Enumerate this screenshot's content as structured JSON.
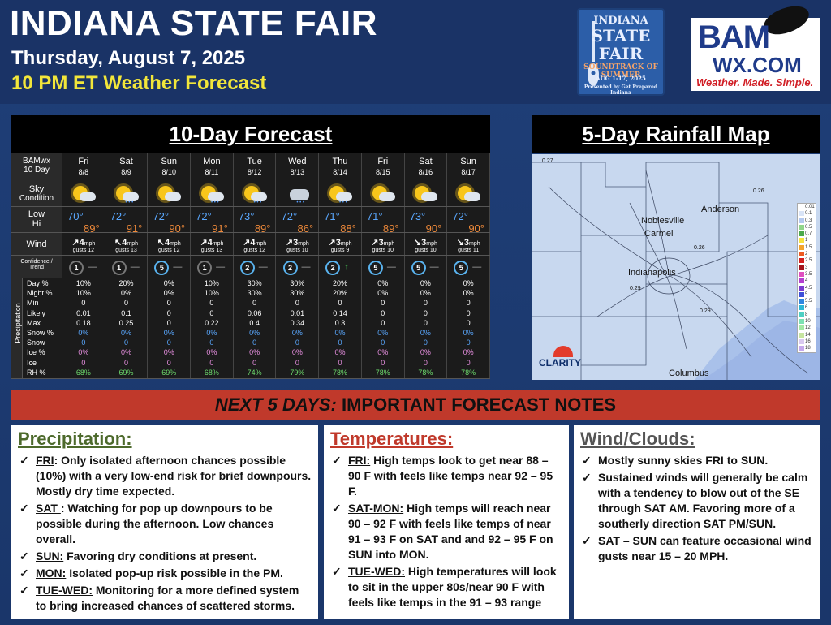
{
  "header": {
    "title": "INDIANA STATE FAIR",
    "date": "Thursday, August 7, 2025",
    "subtitle": "10 PM ET Weather Forecast"
  },
  "fair_logo": {
    "line1": "INDIANA",
    "line2": "STATE",
    "line3": "FAIR",
    "line4": "SOUNDTRACK OF SUMMER",
    "line5": "AUG 1-17, 2025",
    "line6": "Presented by Get Prepared Indiana"
  },
  "bam_logo": {
    "top": "BAM",
    "wx": "WX.COM",
    "tagline": "Weather. Made. Simple."
  },
  "forecast": {
    "title": "10-Day Forecast",
    "corner_label_1": "BAMwx",
    "corner_label_2": "10 Day",
    "labels": {
      "sky": "Sky",
      "sky_sub": "Condition",
      "low": "Low",
      "hi": "Hi",
      "wind": "Wind",
      "confidence": "Confidence /",
      "trend": "Trend",
      "precipitation": "Precipitation",
      "mph": "mph",
      "gusts": "gusts"
    },
    "precip_labels": [
      "Day %",
      "Night %",
      "Min",
      "Likely",
      "Max",
      "Snow %",
      "Snow",
      "Ice %",
      "Ice",
      "RH %"
    ],
    "days": [
      {
        "name": "Fri",
        "date": "8/8",
        "icon": "sun-cloud-icon",
        "low": "70°",
        "hi": "89°",
        "wind_dir": "↗",
        "wind": "4",
        "gusts": "12",
        "confidence": "1",
        "trend": "—",
        "precip": [
          "10%",
          "10%",
          "0",
          "0.01",
          "0.18",
          "0%",
          "0",
          "0%",
          "0",
          "68%"
        ]
      },
      {
        "name": "Sat",
        "date": "8/9",
        "icon": "sun-cloud-rain-icon",
        "low": "72°",
        "hi": "91°",
        "wind_dir": "↖",
        "wind": "4",
        "gusts": "13",
        "confidence": "1",
        "trend": "—",
        "precip": [
          "20%",
          "0%",
          "0",
          "0.1",
          "0.25",
          "0%",
          "0",
          "0%",
          "0",
          "69%"
        ]
      },
      {
        "name": "Sun",
        "date": "8/10",
        "icon": "sun-cloud-icon",
        "low": "72°",
        "hi": "90°",
        "wind_dir": "↖",
        "wind": "4",
        "gusts": "12",
        "confidence": "5",
        "trend": "—",
        "precip": [
          "0%",
          "0%",
          "0",
          "0",
          "0",
          "0%",
          "0",
          "0%",
          "0",
          "69%"
        ]
      },
      {
        "name": "Mon",
        "date": "8/11",
        "icon": "sun-cloud-rain-icon",
        "low": "72°",
        "hi": "91°",
        "wind_dir": "↗",
        "wind": "4",
        "gusts": "13",
        "confidence": "1",
        "trend": "—",
        "precip": [
          "10%",
          "10%",
          "0",
          "0",
          "0.22",
          "0%",
          "0",
          "0%",
          "0",
          "68%"
        ]
      },
      {
        "name": "Tue",
        "date": "8/12",
        "icon": "sun-cloud-rain-icon",
        "low": "73°",
        "hi": "89°",
        "wind_dir": "↗",
        "wind": "4",
        "gusts": "12",
        "confidence": "2",
        "trend": "—",
        "precip": [
          "30%",
          "30%",
          "0",
          "0.06",
          "0.4",
          "0%",
          "0",
          "0%",
          "0",
          "74%"
        ]
      },
      {
        "name": "Wed",
        "date": "8/13",
        "icon": "cloud-rain-icon",
        "low": "72°",
        "hi": "86°",
        "wind_dir": "↗",
        "wind": "3",
        "gusts": "10",
        "confidence": "2",
        "trend": "—",
        "precip": [
          "30%",
          "30%",
          "0",
          "0.01",
          "0.34",
          "0%",
          "0",
          "0%",
          "0",
          "79%"
        ]
      },
      {
        "name": "Thu",
        "date": "8/14",
        "icon": "sun-cloud-rain-icon",
        "low": "71°",
        "hi": "88°",
        "wind_dir": "↗",
        "wind": "3",
        "gusts": "9",
        "confidence": "2",
        "trend": "↑",
        "precip": [
          "20%",
          "20%",
          "0",
          "0.14",
          "0.3",
          "0%",
          "0",
          "0%",
          "0",
          "78%"
        ]
      },
      {
        "name": "Fri",
        "date": "8/15",
        "icon": "sun-cloud-icon",
        "low": "71°",
        "hi": "89°",
        "wind_dir": "↗",
        "wind": "3",
        "gusts": "10",
        "confidence": "5",
        "trend": "—",
        "precip": [
          "0%",
          "0%",
          "0",
          "0",
          "0",
          "0%",
          "0",
          "0%",
          "0",
          "78%"
        ]
      },
      {
        "name": "Sat",
        "date": "8/16",
        "icon": "sun-cloud-icon",
        "low": "73°",
        "hi": "90°",
        "wind_dir": "↘",
        "wind": "3",
        "gusts": "10",
        "confidence": "5",
        "trend": "—",
        "precip": [
          "0%",
          "0%",
          "0",
          "0",
          "0",
          "0%",
          "0",
          "0%",
          "0",
          "78%"
        ]
      },
      {
        "name": "Sun",
        "date": "8/17",
        "icon": "sun-cloud-icon",
        "low": "72°",
        "hi": "90°",
        "wind_dir": "↘",
        "wind": "3",
        "gusts": "11",
        "confidence": "5",
        "trend": "—",
        "precip": [
          "0%",
          "0%",
          "0",
          "0",
          "0",
          "0%",
          "0",
          "0%",
          "0",
          "78%"
        ]
      }
    ]
  },
  "rain_map": {
    "title": "5-Day Rainfall Map",
    "cities": [
      "Anderson",
      "Noblesville",
      "Carmel",
      "Indianapolis",
      "Columbus"
    ],
    "values": [
      "0.27",
      "0.26",
      "0.26",
      "0.29",
      "0.29"
    ],
    "legend": [
      {
        "label": "0.01",
        "color": "#ffffff"
      },
      {
        "label": "0.1",
        "color": "#d9e4f7"
      },
      {
        "label": "0.3",
        "color": "#b4c9f0"
      },
      {
        "label": "0.5",
        "color": "#91d68a"
      },
      {
        "label": "0.7",
        "color": "#4caa4c"
      },
      {
        "label": "1",
        "color": "#f6e23c"
      },
      {
        "label": "1.5",
        "color": "#f4a32a"
      },
      {
        "label": "2",
        "color": "#ee5a21"
      },
      {
        "label": "2.5",
        "color": "#d41f1f"
      },
      {
        "label": "3",
        "color": "#a3121a"
      },
      {
        "label": "3.5",
        "color": "#e04fbf"
      },
      {
        "label": "4",
        "color": "#b53fd0"
      },
      {
        "label": "4.5",
        "color": "#7c3bcf"
      },
      {
        "label": "5",
        "color": "#3d4fd8"
      },
      {
        "label": "5.5",
        "color": "#2f86e0"
      },
      {
        "label": "6",
        "color": "#2bb8d6"
      },
      {
        "label": "8",
        "color": "#4fd0c4"
      },
      {
        "label": "10",
        "color": "#7ce1b3"
      },
      {
        "label": "12",
        "color": "#a2e8a4"
      },
      {
        "label": "14",
        "color": "#c7e5a0"
      },
      {
        "label": "16",
        "color": "#d9c9f0"
      },
      {
        "label": "18",
        "color": "#c5a8ec"
      }
    ],
    "clarity": "CLARITY"
  },
  "notes": {
    "bar_italic": "NEXT 5 DAYS:",
    "bar_rest": " IMPORTANT FORECAST NOTES",
    "precipitation": {
      "title": "Precipitation:",
      "items": [
        {
          "key": "FRI",
          "text": ": Only isolated afternoon chances possible (10%) with a very low-end risk for brief downpours. Mostly dry time expected."
        },
        {
          "key": "SAT ",
          "text": ": Watching for pop up downpours to be possible during the afternoon. Low chances overall."
        },
        {
          "key": "SUN:",
          "text": " Favoring dry conditions at present."
        },
        {
          "key": "MON:",
          "text": " Isolated pop-up risk possible in the PM."
        },
        {
          "key": "TUE-WED:",
          "text": " Monitoring for a more defined system to bring increased chances of scattered storms."
        }
      ]
    },
    "temperatures": {
      "title": "Temperatures:",
      "items": [
        {
          "key": "FRI:",
          "text": " High temps look to get near 88 – 90 F with feels like temps near 92 – 95 F."
        },
        {
          "key": "SAT-MON:",
          "text": " High temps will reach near 90 – 92 F with feels like temps of near 91 – 93 F on SAT and and 92 – 95 F on SUN into MON."
        },
        {
          "key": "TUE-WED:",
          "text": " High temperatures will look to sit in the upper 80s/near 90 F with feels like temps in the 91 – 93 range"
        }
      ]
    },
    "wind": {
      "title": "Wind/Clouds:",
      "items": [
        {
          "key": "",
          "text": "Mostly sunny skies FRI to SUN."
        },
        {
          "key": "",
          "text": "Sustained winds will generally be calm with a tendency to blow out of the SE through SAT AM. Favoring more of a southerly direction SAT PM/SUN."
        },
        {
          "key": "",
          "text": "SAT – SUN can feature occasional wind gusts near 15 – 20 MPH."
        }
      ]
    }
  }
}
